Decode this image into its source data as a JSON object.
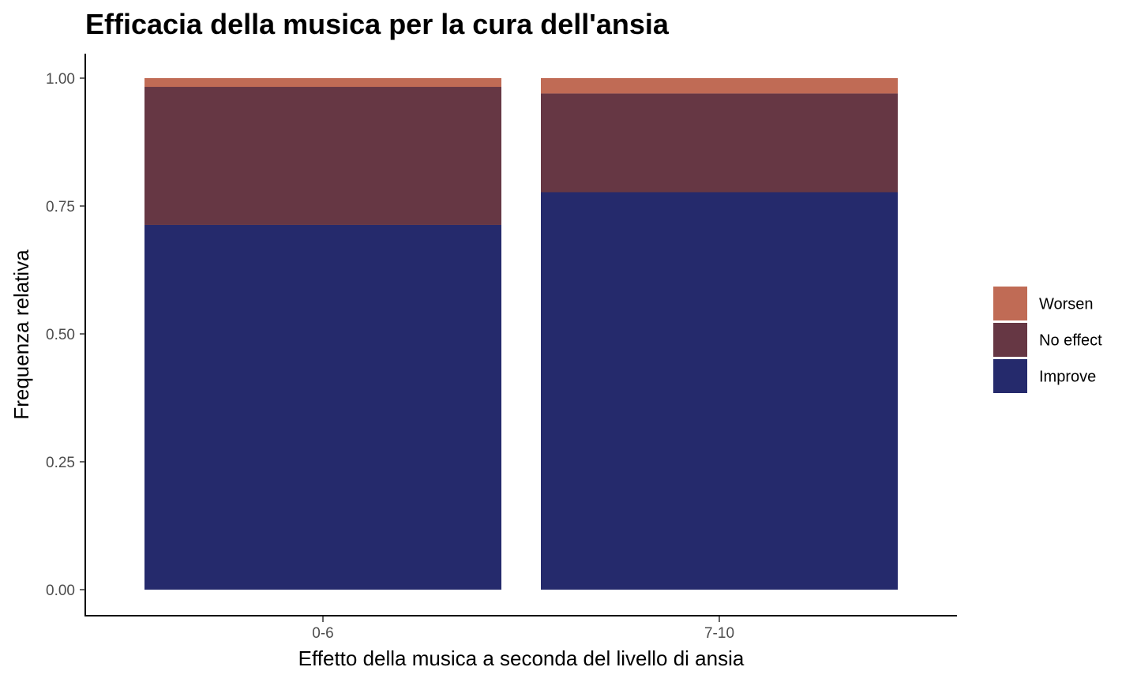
{
  "chart_data": {
    "type": "bar",
    "stacked": true,
    "title": "Efficacia della musica per la cura dell'ansia",
    "xlabel": "Effetto della musica a seconda del livello di ansia",
    "ylabel": "Frequenza relativa",
    "categories": [
      "0-6",
      "7-10"
    ],
    "series": [
      {
        "name": "Improve",
        "values": [
          0.713,
          0.777
        ],
        "color": "#252A6C"
      },
      {
        "name": "No effect",
        "values": [
          0.27,
          0.193
        ],
        "color": "#663744"
      },
      {
        "name": "Worsen",
        "values": [
          0.017,
          0.03
        ],
        "color": "#C06B55"
      }
    ],
    "ylim": [
      0,
      1
    ],
    "yticks": [
      "0.00",
      "0.25",
      "0.50",
      "0.75",
      "1.00"
    ],
    "ytick_values": [
      0,
      0.25,
      0.5,
      0.75,
      1
    ],
    "legend_order": [
      "Worsen",
      "No effect",
      "Improve"
    ],
    "legend_position": "right",
    "grid": false
  }
}
